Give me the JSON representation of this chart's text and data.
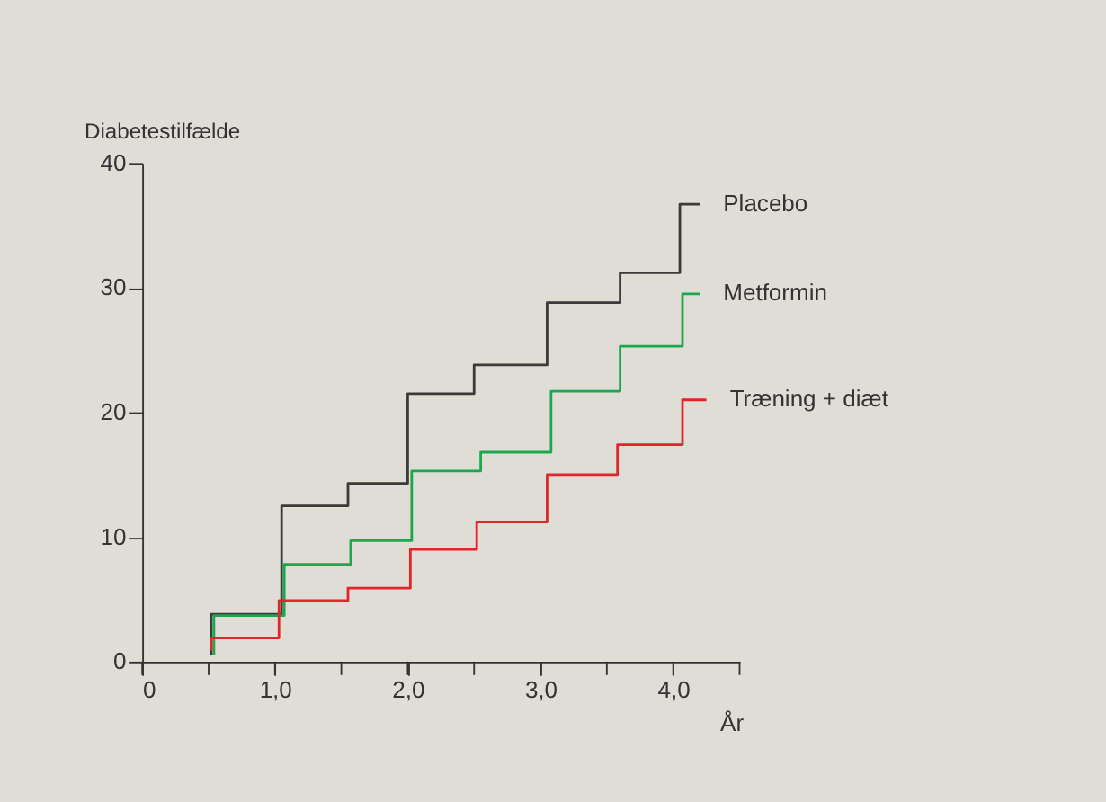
{
  "chart_data": {
    "type": "step",
    "xlabel": "År",
    "ylabel": "Diabetestilfælde",
    "xlim": [
      0,
      4.5
    ],
    "ylim": [
      0,
      40
    ],
    "xticks": [
      0,
      {
        "value": 0.5,
        "label": null
      },
      {
        "value": 1,
        "label": "1,0"
      },
      {
        "value": 1.5,
        "label": null
      },
      {
        "value": 2,
        "label": "2,0"
      },
      {
        "value": 2.5,
        "label": null
      },
      {
        "value": 3,
        "label": "3,0"
      },
      {
        "value": 3.5,
        "label": null
      },
      {
        "value": 4,
        "label": "4,0"
      },
      {
        "value": 4.5,
        "label": null
      }
    ],
    "yticks": [
      0,
      10,
      20,
      30,
      40
    ],
    "grid": false,
    "legend": false,
    "marker": "none",
    "line_style": "solid",
    "series": [
      {
        "name": "Placebo",
        "color": "#3a3a3a",
        "x": [
          0.52,
          0.52,
          1.05,
          1.55,
          2.0,
          2.5,
          3.05,
          3.6,
          4.05,
          4.2
        ],
        "values": [
          0.5,
          3.8,
          12.5,
          14.3,
          21.5,
          23.8,
          28.8,
          31.2,
          36.7,
          36.7
        ]
      },
      {
        "name": "Metformin",
        "color": "#1aa84f",
        "x": [
          0.54,
          0.54,
          1.07,
          1.57,
          2.03,
          2.55,
          3.08,
          3.6,
          4.07,
          4.2
        ],
        "values": [
          0.5,
          3.7,
          7.8,
          9.7,
          15.3,
          16.8,
          21.7,
          25.3,
          29.5,
          29.5
        ]
      },
      {
        "name": "Træning + diæt",
        "color": "#e0262b",
        "x": [
          0.52,
          0.52,
          1.03,
          1.55,
          2.02,
          2.52,
          3.05,
          3.58,
          4.07,
          4.25
        ],
        "values": [
          0.9,
          1.9,
          4.9,
          5.9,
          9.0,
          11.2,
          15.0,
          17.4,
          21.0,
          21.0
        ]
      }
    ]
  }
}
